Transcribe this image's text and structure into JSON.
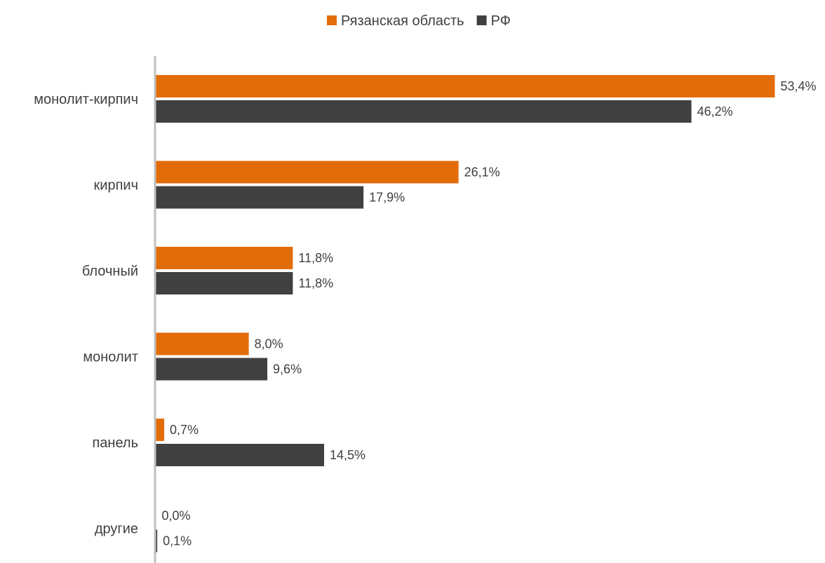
{
  "chart_data": {
    "type": "bar",
    "orientation": "horizontal",
    "categories": [
      "монолит-кирпич",
      "кирпич",
      "блочный",
      "монолит",
      "панель",
      "другие"
    ],
    "series": [
      {
        "name": "Рязанская область",
        "color": "#E36C0A",
        "values": [
          53.4,
          26.1,
          11.8,
          8.0,
          0.7,
          0.0
        ],
        "labels": [
          "53,4%",
          "26,1%",
          "11,8%",
          "8,0%",
          "0,7%",
          "0,0%"
        ]
      },
      {
        "name": "РФ",
        "color": "#404040",
        "values": [
          46.2,
          17.9,
          11.8,
          9.6,
          14.5,
          0.1
        ],
        "labels": [
          "46,2%",
          "17,9%",
          "11,8%",
          "9,6%",
          "14,5%",
          "0,1%"
        ]
      }
    ],
    "xlim": [
      0,
      53.4
    ],
    "legend_position": "top-center",
    "grid": false,
    "axis_color": "#BFBFBF"
  }
}
